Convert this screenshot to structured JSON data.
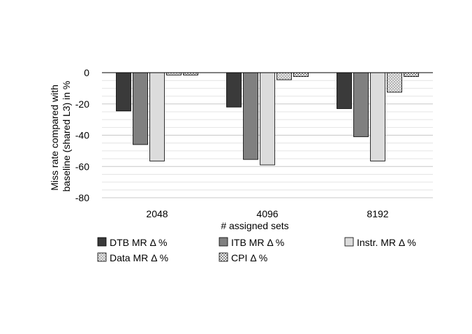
{
  "chart_data": {
    "type": "bar",
    "categories": [
      "2048",
      "4096",
      "8192"
    ],
    "series": [
      {
        "name": "DTB MR  Δ %",
        "values": [
          -24.5,
          -22,
          -23
        ],
        "color": "#3a3a3a",
        "pattern": "solid"
      },
      {
        "name": "ITB MR Δ %",
        "values": [
          -46,
          -55.5,
          -41
        ],
        "color": "#808080",
        "pattern": "solid"
      },
      {
        "name": "Instr. MR Δ %",
        "values": [
          -56.5,
          -59,
          -56.5
        ],
        "color": "#dcdcdc",
        "pattern": "solid"
      },
      {
        "name": "Data MR Δ %",
        "values": [
          -1.5,
          -4.5,
          -12.5
        ],
        "color": "#d9d9d9",
        "pattern": "dots"
      },
      {
        "name": "CPI Δ %",
        "values": [
          -1.5,
          -2.5,
          -2.5
        ],
        "color": "#f0f0f0",
        "pattern": "checker"
      }
    ],
    "ylim": [
      -80,
      0
    ],
    "yticks": [
      0,
      -20,
      -40,
      -60,
      -80
    ],
    "xlabel": "# assigned sets",
    "ylabel_lines": [
      "Miss rate compared with",
      "baseline (shared L3) in %"
    ],
    "grid": true,
    "legend_position": "bottom"
  }
}
